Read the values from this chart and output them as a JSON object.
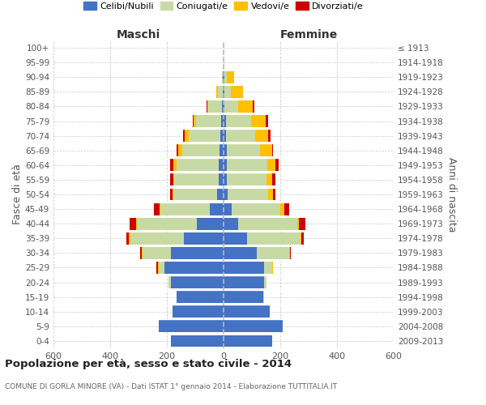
{
  "age_groups": [
    "0-4",
    "5-9",
    "10-14",
    "15-19",
    "20-24",
    "25-29",
    "30-34",
    "35-39",
    "40-44",
    "45-49",
    "50-54",
    "55-59",
    "60-64",
    "65-69",
    "70-74",
    "75-79",
    "80-84",
    "85-89",
    "90-94",
    "95-99",
    "100+"
  ],
  "birth_years": [
    "2009-2013",
    "2004-2008",
    "1999-2003",
    "1994-1998",
    "1989-1993",
    "1984-1988",
    "1979-1983",
    "1974-1978",
    "1969-1973",
    "1964-1968",
    "1959-1963",
    "1954-1958",
    "1949-1953",
    "1944-1948",
    "1939-1943",
    "1934-1938",
    "1929-1933",
    "1924-1928",
    "1919-1923",
    "1914-1918",
    "≤ 1913"
  ],
  "male_celibi": [
    185,
    230,
    180,
    165,
    185,
    210,
    185,
    140,
    95,
    48,
    22,
    18,
    18,
    15,
    12,
    8,
    5,
    3,
    2,
    0,
    0
  ],
  "male_coniugati": [
    0,
    0,
    0,
    0,
    8,
    18,
    100,
    190,
    210,
    175,
    155,
    155,
    148,
    130,
    112,
    90,
    48,
    18,
    5,
    0,
    0
  ],
  "male_vedovi": [
    0,
    0,
    0,
    0,
    0,
    4,
    4,
    4,
    4,
    4,
    4,
    5,
    10,
    14,
    14,
    8,
    5,
    4,
    0,
    0,
    0
  ],
  "male_divorziati": [
    0,
    0,
    0,
    0,
    0,
    5,
    5,
    8,
    22,
    20,
    8,
    10,
    12,
    8,
    5,
    4,
    2,
    0,
    0,
    0,
    0
  ],
  "female_nubili": [
    172,
    208,
    162,
    140,
    142,
    142,
    118,
    82,
    52,
    28,
    14,
    12,
    12,
    10,
    8,
    8,
    4,
    4,
    2,
    0,
    0
  ],
  "female_coniugate": [
    0,
    0,
    0,
    4,
    10,
    28,
    112,
    188,
    207,
    172,
    142,
    138,
    142,
    118,
    102,
    88,
    48,
    22,
    8,
    2,
    0
  ],
  "female_vedove": [
    0,
    0,
    0,
    0,
    0,
    4,
    4,
    4,
    8,
    14,
    18,
    22,
    28,
    42,
    48,
    52,
    52,
    42,
    28,
    2,
    0
  ],
  "female_divorziate": [
    0,
    0,
    0,
    0,
    0,
    0,
    4,
    8,
    22,
    18,
    8,
    10,
    12,
    5,
    8,
    8,
    4,
    0,
    0,
    0,
    0
  ],
  "color_celibi": "#4472C4",
  "color_coniugati": "#c8daa4",
  "color_vedovi": "#ffc000",
  "color_divorziati": "#cc0000",
  "title": "Popolazione per età, sesso e stato civile - 2014",
  "subtitle": "COMUNE DI GORLA MINORE (VA) - Dati ISTAT 1° gennaio 2014 - Elaborazione TUTTITALIA.IT",
  "label_maschi": "Maschi",
  "label_femmine": "Femmine",
  "label_fasce": "Fasce di età",
  "label_anni": "Anni di nascita",
  "legend_labels": [
    "Celibi/Nubili",
    "Coniugati/e",
    "Vedovi/e",
    "Divorziati/e"
  ],
  "xlim": 600,
  "bg_color": "#ffffff",
  "grid_color": "#cccccc",
  "bar_height": 0.82
}
